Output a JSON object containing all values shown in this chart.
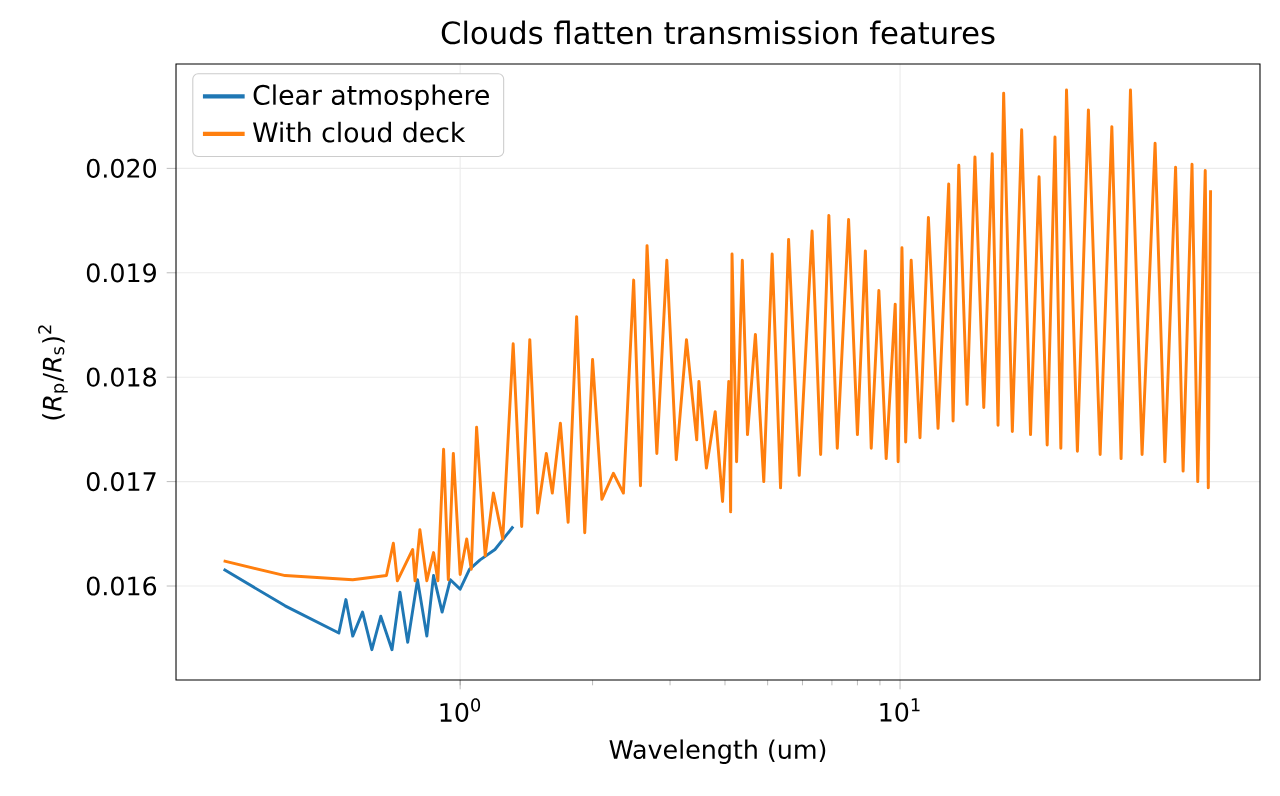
{
  "chart_data": {
    "type": "line",
    "title": "Clouds flatten transmission features",
    "xlabel": "Wavelength (um)",
    "ylabel": "(*R*$_{p}$/*R*$_{s}$)$^{2}$",
    "log": "x",
    "grid": true,
    "legend": "top left",
    "line_style": "solid",
    "marker": "none",
    "xlim": [
      0.226,
      65.8
    ],
    "ylim": [
      0.0151,
      0.021
    ],
    "xticks": [
      {
        "value": 1,
        "label": "10$^{0}$"
      },
      {
        "value": 10,
        "label": "10$^{1}$"
      }
    ],
    "yticks": [
      0.016,
      0.017,
      0.018,
      0.019,
      {
        "value": 0.02,
        "label": "0.020"
      }
    ],
    "series": [
      {
        "name": "Clear atmosphere",
        "color": "#1f77b4",
        "x": [
          0.29,
          0.4,
          0.53,
          0.55,
          0.57,
          0.6,
          0.63,
          0.66,
          0.7,
          0.73,
          0.76,
          0.8,
          0.84,
          0.87,
          0.91,
          0.95,
          1.0,
          1.05,
          1.11,
          1.2,
          1.32
        ],
        "values": [
          0.01616,
          0.01581,
          0.01555,
          0.01587,
          0.01552,
          0.01575,
          0.01539,
          0.01571,
          0.01539,
          0.01594,
          0.01546,
          0.01606,
          0.01552,
          0.0161,
          0.01575,
          0.01606,
          0.01597,
          0.01616,
          0.01625,
          0.01635,
          0.01657
        ]
      },
      {
        "name": "With cloud deck",
        "color": "#ff7f0e",
        "x": [
          0.29,
          0.4,
          0.57,
          0.68,
          0.705,
          0.72,
          0.78,
          0.79,
          0.81,
          0.84,
          0.87,
          0.89,
          0.917,
          0.94,
          0.965,
          1.0,
          1.035,
          1.06,
          1.09,
          1.14,
          1.19,
          1.25,
          1.32,
          1.38,
          1.44,
          1.5,
          1.57,
          1.62,
          1.69,
          1.76,
          1.84,
          1.92,
          2.0,
          2.1,
          2.23,
          2.35,
          2.48,
          2.57,
          2.66,
          2.8,
          2.95,
          3.1,
          3.27,
          3.45,
          3.49,
          3.63,
          3.8,
          3.95,
          4.08,
          4.12,
          4.15,
          4.25,
          4.38,
          4.5,
          4.69,
          4.9,
          5.12,
          5.35,
          5.58,
          5.9,
          6.31,
          6.6,
          6.89,
          7.2,
          7.64,
          8.0,
          8.34,
          8.6,
          8.95,
          9.3,
          9.75,
          9.9,
          10.1,
          10.3,
          10.6,
          11.1,
          11.6,
          12.2,
          12.9,
          13.2,
          13.6,
          14.2,
          14.8,
          15.5,
          16.2,
          16.7,
          17.2,
          18.0,
          18.9,
          19.8,
          20.7,
          21.6,
          22.5,
          23.2,
          23.9,
          25.3,
          26.8,
          28.5,
          30.3,
          31.8,
          33.4,
          35.5,
          38.0,
          40.0,
          42.3,
          44.0,
          46.1,
          47.5,
          49.4,
          50.2,
          50.8
        ],
        "values": [
          0.01624,
          0.0161,
          0.01606,
          0.0161,
          0.01641,
          0.01605,
          0.01635,
          0.01605,
          0.01654,
          0.01605,
          0.01632,
          0.01605,
          0.01731,
          0.01606,
          0.01727,
          0.01611,
          0.01645,
          0.01616,
          0.01752,
          0.01629,
          0.01689,
          0.01645,
          0.01832,
          0.01657,
          0.01836,
          0.0167,
          0.01727,
          0.01689,
          0.01756,
          0.01661,
          0.01858,
          0.01651,
          0.01817,
          0.01683,
          0.01708,
          0.01689,
          0.01893,
          0.01696,
          0.01926,
          0.01727,
          0.01912,
          0.01721,
          0.01836,
          0.0174,
          0.01796,
          0.01713,
          0.01767,
          0.01681,
          0.01796,
          0.01671,
          0.01918,
          0.01719,
          0.01912,
          0.01745,
          0.01841,
          0.017,
          0.01918,
          0.01694,
          0.01932,
          0.01706,
          0.0194,
          0.01726,
          0.01955,
          0.01732,
          0.01951,
          0.01745,
          0.01921,
          0.01732,
          0.01883,
          0.01722,
          0.0187,
          0.01719,
          0.01924,
          0.01738,
          0.01912,
          0.01742,
          0.01953,
          0.01751,
          0.01985,
          0.01758,
          0.02003,
          0.01774,
          0.02011,
          0.01771,
          0.02014,
          0.01754,
          0.02072,
          0.01748,
          0.02037,
          0.01745,
          0.01992,
          0.01735,
          0.0203,
          0.01732,
          0.02075,
          0.01729,
          0.02056,
          0.01726,
          0.0204,
          0.01722,
          0.02075,
          0.01726,
          0.02024,
          0.01719,
          0.02001,
          0.0171,
          0.02004,
          0.017,
          0.01998,
          0.01694,
          0.01979
        ]
      }
    ]
  }
}
